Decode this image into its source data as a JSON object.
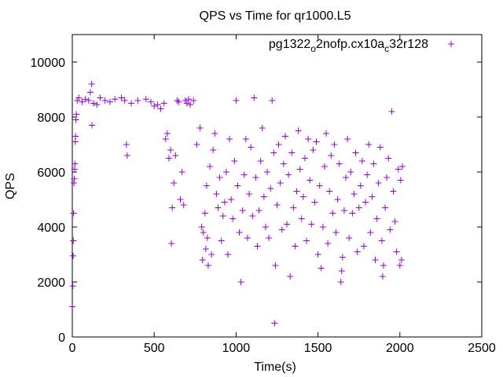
{
  "chart_data": {
    "type": "scatter",
    "title": "QPS vs Time for qr1000.L5",
    "xlabel": "Time(s)",
    "ylabel": "QPS",
    "xlim": [
      0,
      2500
    ],
    "ylim": [
      0,
      11000
    ],
    "x_ticks": [
      0,
      500,
      1000,
      1500,
      2000,
      2500
    ],
    "y_ticks": [
      0,
      2000,
      4000,
      6000,
      8000,
      10000
    ],
    "x_tick_labels": [
      "0",
      "500",
      "1000",
      "1500",
      "2000",
      "2500"
    ],
    "y_tick_labels": [
      "0",
      "2000",
      "4000",
      "6000",
      "8000",
      "10000"
    ],
    "marker": "+",
    "grid": false,
    "legend_position": "top-right",
    "series": [
      {
        "name": "pg1322_o2nofp.cx10a_c32r128",
        "legend_parts": [
          "pg1322",
          "o",
          "2nofp.cx10a",
          "c",
          "32r128"
        ],
        "color": "#9400d3",
        "points": [
          [
            1,
            1100
          ],
          [
            3,
            1850
          ],
          [
            5,
            2950
          ],
          [
            6,
            3500
          ],
          [
            8,
            4500
          ],
          [
            10,
            5600
          ],
          [
            12,
            5750
          ],
          [
            14,
            6100
          ],
          [
            16,
            6300
          ],
          [
            18,
            7100
          ],
          [
            20,
            7300
          ],
          [
            22,
            7900
          ],
          [
            25,
            8100
          ],
          [
            30,
            8600
          ],
          [
            40,
            8700
          ],
          [
            60,
            8550
          ],
          [
            80,
            8650
          ],
          [
            100,
            8600
          ],
          [
            110,
            8900
          ],
          [
            118,
            9200
          ],
          [
            120,
            7700
          ],
          [
            130,
            8500
          ],
          [
            150,
            8450
          ],
          [
            170,
            8700
          ],
          [
            200,
            8600
          ],
          [
            230,
            8550
          ],
          [
            260,
            8650
          ],
          [
            300,
            8700
          ],
          [
            320,
            8600
          ],
          [
            330,
            7000
          ],
          [
            335,
            6600
          ],
          [
            360,
            8500
          ],
          [
            400,
            8600
          ],
          [
            450,
            8650
          ],
          [
            480,
            8550
          ],
          [
            500,
            8400
          ],
          [
            520,
            8450
          ],
          [
            540,
            8300
          ],
          [
            560,
            8500
          ],
          [
            570,
            7200
          ],
          [
            580,
            7400
          ],
          [
            590,
            6500
          ],
          [
            600,
            6800
          ],
          [
            605,
            3400
          ],
          [
            610,
            4700
          ],
          [
            620,
            5600
          ],
          [
            630,
            6600
          ],
          [
            640,
            8600
          ],
          [
            650,
            8550
          ],
          [
            660,
            5000
          ],
          [
            670,
            6000
          ],
          [
            680,
            4800
          ],
          [
            690,
            8600
          ],
          [
            700,
            8500
          ],
          [
            710,
            8650
          ],
          [
            720,
            8450
          ],
          [
            740,
            8600
          ],
          [
            760,
            7000
          ],
          [
            780,
            7600
          ],
          [
            790,
            4000
          ],
          [
            795,
            2800
          ],
          [
            800,
            3800
          ],
          [
            810,
            4500
          ],
          [
            815,
            3200
          ],
          [
            820,
            5500
          ],
          [
            825,
            3600
          ],
          [
            830,
            2600
          ],
          [
            840,
            6200
          ],
          [
            850,
            3000
          ],
          [
            860,
            6800
          ],
          [
            870,
            7400
          ],
          [
            880,
            5200
          ],
          [
            890,
            4700
          ],
          [
            900,
            5800
          ],
          [
            910,
            3500
          ],
          [
            920,
            4400
          ],
          [
            930,
            4900
          ],
          [
            940,
            6000
          ],
          [
            950,
            3000
          ],
          [
            960,
            7200
          ],
          [
            970,
            5000
          ],
          [
            980,
            4300
          ],
          [
            990,
            6400
          ],
          [
            1000,
            8600
          ],
          [
            1010,
            5500
          ],
          [
            1020,
            3800
          ],
          [
            1030,
            2000
          ],
          [
            1040,
            4600
          ],
          [
            1050,
            5900
          ],
          [
            1060,
            7200
          ],
          [
            1070,
            3600
          ],
          [
            1080,
            5200
          ],
          [
            1090,
            6900
          ],
          [
            1100,
            4400
          ],
          [
            1110,
            8700
          ],
          [
            1120,
            5800
          ],
          [
            1130,
            3300
          ],
          [
            1140,
            4600
          ],
          [
            1150,
            6400
          ],
          [
            1160,
            7600
          ],
          [
            1170,
            5100
          ],
          [
            1180,
            4000
          ],
          [
            1190,
            6000
          ],
          [
            1200,
            3600
          ],
          [
            1210,
            5400
          ],
          [
            1220,
            8600
          ],
          [
            1230,
            6700
          ],
          [
            1235,
            500
          ],
          [
            1240,
            2600
          ],
          [
            1250,
            4800
          ],
          [
            1260,
            7000
          ],
          [
            1270,
            5600
          ],
          [
            1280,
            3900
          ],
          [
            1290,
            6300
          ],
          [
            1300,
            7300
          ],
          [
            1310,
            4100
          ],
          [
            1320,
            5900
          ],
          [
            1330,
            2200
          ],
          [
            1340,
            6700
          ],
          [
            1350,
            4700
          ],
          [
            1360,
            3300
          ],
          [
            1370,
            5300
          ],
          [
            1380,
            7500
          ],
          [
            1390,
            6100
          ],
          [
            1400,
            4300
          ],
          [
            1410,
            5100
          ],
          [
            1420,
            6500
          ],
          [
            1430,
            3500
          ],
          [
            1440,
            7200
          ],
          [
            1450,
            5700
          ],
          [
            1460,
            4100
          ],
          [
            1470,
            6800
          ],
          [
            1480,
            4900
          ],
          [
            1490,
            7100
          ],
          [
            1500,
            3000
          ],
          [
            1510,
            5500
          ],
          [
            1520,
            2500
          ],
          [
            1530,
            4000
          ],
          [
            1540,
            6200
          ],
          [
            1550,
            7400
          ],
          [
            1560,
            3400
          ],
          [
            1570,
            5300
          ],
          [
            1580,
            6600
          ],
          [
            1590,
            4500
          ],
          [
            1600,
            7000
          ],
          [
            1610,
            3800
          ],
          [
            1620,
            5000
          ],
          [
            1630,
            6300
          ],
          [
            1640,
            2000
          ],
          [
            1645,
            2400
          ],
          [
            1650,
            2900
          ],
          [
            1660,
            4600
          ],
          [
            1670,
            5800
          ],
          [
            1680,
            7200
          ],
          [
            1690,
            3600
          ],
          [
            1700,
            6000
          ],
          [
            1710,
            4500
          ],
          [
            1720,
            5200
          ],
          [
            1730,
            6700
          ],
          [
            1740,
            3100
          ],
          [
            1750,
            4700
          ],
          [
            1760,
            5500
          ],
          [
            1770,
            6400
          ],
          [
            1780,
            3300
          ],
          [
            1790,
            4900
          ],
          [
            1800,
            5900
          ],
          [
            1810,
            7000
          ],
          [
            1820,
            3800
          ],
          [
            1830,
            5100
          ],
          [
            1840,
            6300
          ],
          [
            1850,
            2800
          ],
          [
            1860,
            4300
          ],
          [
            1870,
            5600
          ],
          [
            1880,
            6900
          ],
          [
            1890,
            3500
          ],
          [
            1895,
            2200
          ],
          [
            1900,
            2600
          ],
          [
            1910,
            4700
          ],
          [
            1920,
            5800
          ],
          [
            1930,
            6500
          ],
          [
            1940,
            3900
          ],
          [
            1950,
            8200
          ],
          [
            1960,
            5300
          ],
          [
            1970,
            4200
          ],
          [
            1980,
            3100
          ],
          [
            1990,
            6100
          ],
          [
            2000,
            2600
          ],
          [
            2005,
            5700
          ],
          [
            2010,
            2800
          ],
          [
            2015,
            6200
          ]
        ]
      }
    ]
  }
}
